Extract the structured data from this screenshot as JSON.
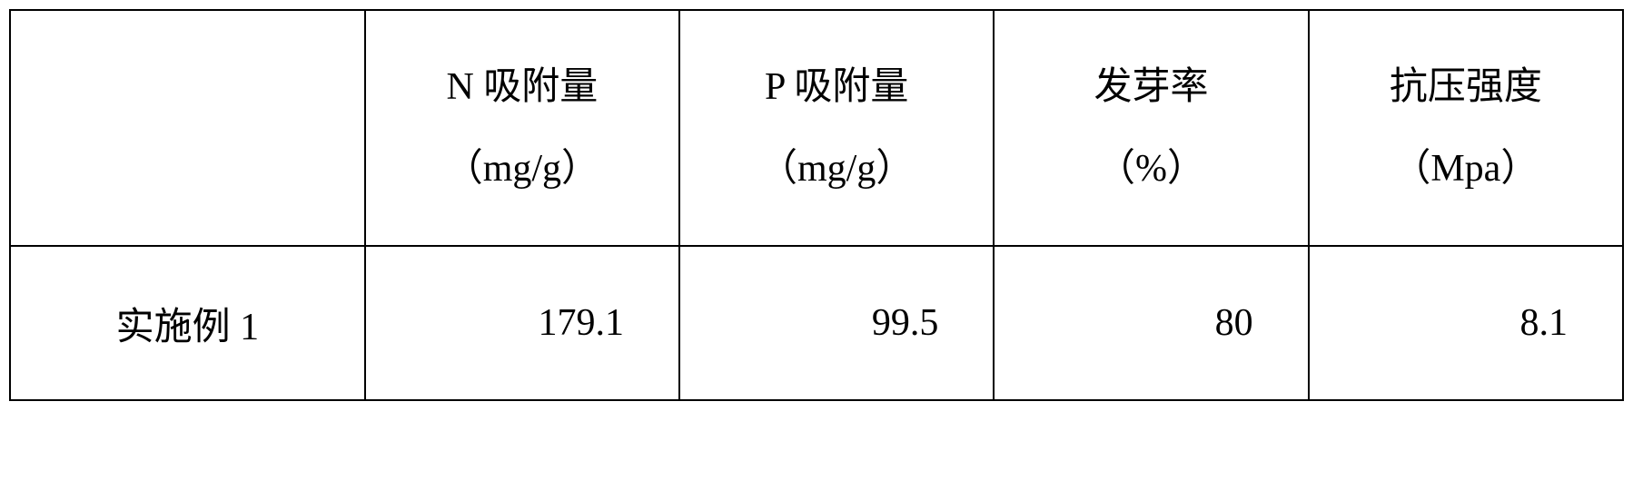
{
  "table": {
    "type": "table",
    "border_color": "#000000",
    "border_width": 2,
    "background_color": "#ffffff",
    "text_color": "#000000",
    "font_size": 42,
    "header_row_height": 260,
    "data_row_height": 170,
    "column_widths_pct": [
      22,
      19.5,
      19.5,
      19.5,
      19.5
    ],
    "columns": [
      {
        "label_line1": "",
        "label_line2": "",
        "align": "center"
      },
      {
        "label_line1": "N 吸附量",
        "label_line2": "（mg/g）",
        "align": "right"
      },
      {
        "label_line1": "P 吸附量",
        "label_line2": "（mg/g）",
        "align": "right"
      },
      {
        "label_line1": "发芽率",
        "label_line2": "（%）",
        "align": "right"
      },
      {
        "label_line1": "抗压强度",
        "label_line2": "（Mpa）",
        "align": "right"
      }
    ],
    "rows": [
      {
        "label": "实施例 1",
        "values": [
          "179.1",
          "99.5",
          "80",
          "8.1"
        ]
      }
    ]
  }
}
